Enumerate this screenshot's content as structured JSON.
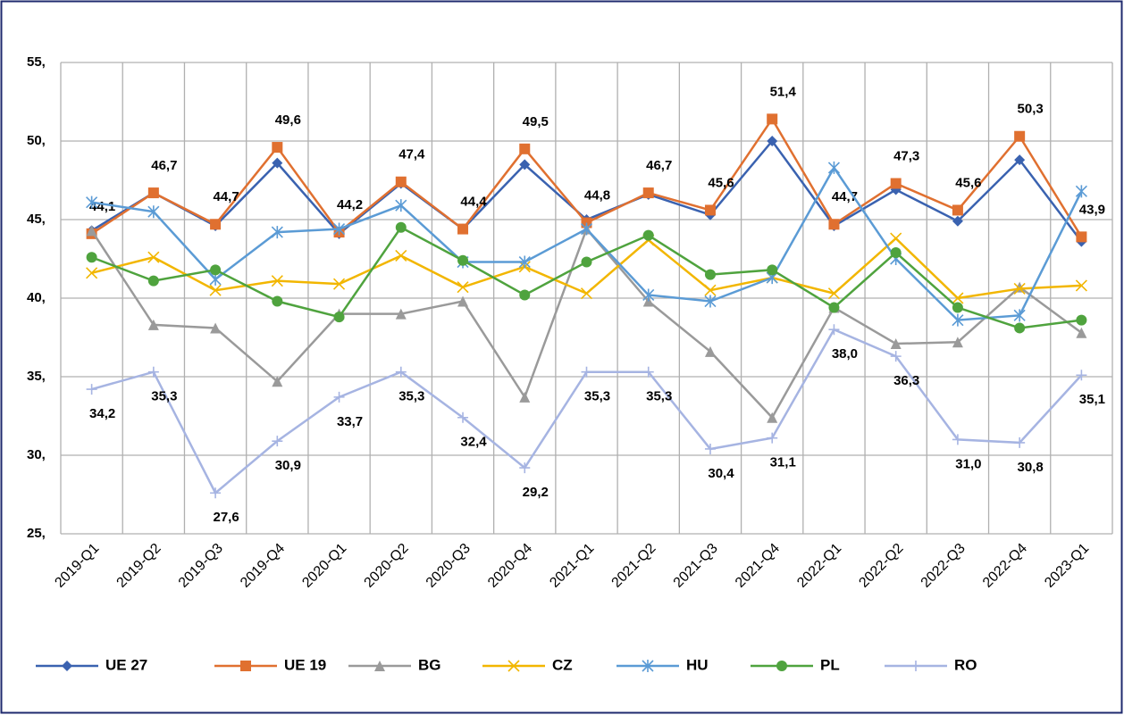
{
  "chart_data": {
    "type": "line",
    "categories": [
      "2019-Q1",
      "2019-Q2",
      "2019-Q3",
      "2019-Q4",
      "2020-Q1",
      "2020-Q2",
      "2020-Q3",
      "2020-Q4",
      "2021-Q1",
      "2021-Q2",
      "2021-Q3",
      "2021-Q4",
      "2022-Q1",
      "2022-Q2",
      "2022-Q3",
      "2022-Q4",
      "2023-Q1"
    ],
    "ylim": [
      25,
      55
    ],
    "yticks": [
      {
        "value": 25,
        "label": "25,"
      },
      {
        "value": 30,
        "label": "30,"
      },
      {
        "value": 35,
        "label": "35,"
      },
      {
        "value": 40,
        "label": "40,"
      },
      {
        "value": 45,
        "label": "45,"
      },
      {
        "value": 50,
        "label": "50,"
      },
      {
        "value": 55,
        "label": "55,"
      }
    ],
    "grid": true,
    "legend": "bottom",
    "series": [
      {
        "name": "UE 27",
        "color": "#3a62b0",
        "marker": "diamond",
        "values": [
          44.3,
          46.7,
          44.6,
          48.6,
          44.1,
          47.3,
          44.4,
          48.5,
          45.0,
          46.6,
          45.3,
          50.0,
          44.6,
          46.9,
          44.9,
          48.8,
          43.6
        ]
      },
      {
        "name": "UE 19",
        "color": "#e07030",
        "marker": "square",
        "values": [
          44.1,
          46.7,
          44.7,
          49.6,
          44.2,
          47.4,
          44.4,
          49.5,
          44.8,
          46.7,
          45.6,
          51.4,
          44.7,
          47.3,
          45.6,
          50.3,
          43.9
        ],
        "value_labels": [
          "44,1",
          "46,7",
          "44,7",
          "49,6",
          "44,2",
          "47,4",
          "44,4",
          "49,5",
          "44,8",
          "46,7",
          "45,6",
          "51,4",
          "44,7",
          "47,3",
          "45,6",
          "50,3",
          "43,9"
        ]
      },
      {
        "name": "BG",
        "color": "#9a9a9a",
        "marker": "triangle",
        "values": [
          44.3,
          38.3,
          38.1,
          34.7,
          39.0,
          39.0,
          39.8,
          33.7,
          44.4,
          39.8,
          36.6,
          32.4,
          39.4,
          37.1,
          37.2,
          40.7,
          37.8
        ]
      },
      {
        "name": "CZ",
        "color": "#f2b600",
        "marker": "x",
        "values": [
          41.6,
          42.6,
          40.5,
          41.1,
          40.9,
          42.7,
          40.7,
          42.0,
          40.3,
          43.7,
          40.5,
          41.3,
          40.3,
          43.8,
          40.0,
          40.6,
          40.8
        ]
      },
      {
        "name": "HU",
        "color": "#5b9bd5",
        "marker": "star",
        "values": [
          46.1,
          45.5,
          41.2,
          44.2,
          44.4,
          45.9,
          42.3,
          42.3,
          44.4,
          40.2,
          39.8,
          41.3,
          48.3,
          42.5,
          38.6,
          38.9,
          46.8
        ]
      },
      {
        "name": "PL",
        "color": "#4fa33e",
        "marker": "circle",
        "values": [
          42.6,
          41.1,
          41.8,
          39.8,
          38.8,
          44.5,
          42.4,
          40.2,
          42.3,
          44.0,
          41.5,
          41.8,
          39.4,
          42.9,
          39.4,
          38.1,
          38.6
        ]
      },
      {
        "name": "RO",
        "color": "#a6b4e2",
        "marker": "plus",
        "values": [
          34.2,
          35.3,
          27.6,
          30.9,
          33.7,
          35.3,
          32.4,
          29.2,
          35.3,
          35.3,
          30.4,
          31.1,
          38.0,
          36.3,
          31.0,
          30.8,
          35.1
        ],
        "value_labels": [
          "34,2",
          "35,3",
          "27,6",
          "30,9",
          "33,7",
          "35,3",
          "32,4",
          "29,2",
          "35,3",
          "35,3",
          "30,4",
          "31,1",
          "38,0",
          "36,3",
          "31,0",
          "30,8",
          "35,1"
        ]
      }
    ]
  }
}
